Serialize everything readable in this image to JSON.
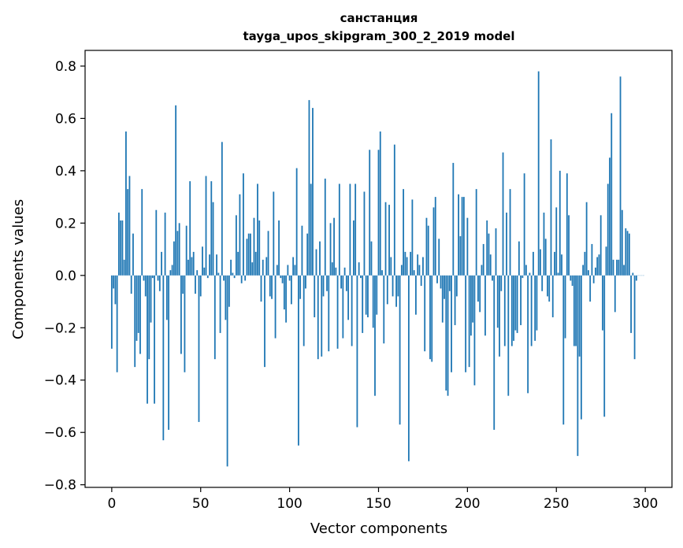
{
  "chart_data": {
    "type": "bar",
    "title": "санстанция",
    "subtitle": "tayga_upos_skipgram_300_2_2019 model",
    "xlabel": "Vector components",
    "ylabel": "Components values",
    "xlim": [
      -15,
      315
    ],
    "ylim": [
      -0.81,
      0.86
    ],
    "xticks": [
      0,
      50,
      100,
      150,
      200,
      250,
      300
    ],
    "yticks": [
      -0.8,
      -0.6,
      -0.4,
      -0.2,
      0.0,
      0.2,
      0.4,
      0.6,
      0.8
    ],
    "ytick_labels": [
      "−0.8",
      "−0.6",
      "−0.4",
      "−0.2",
      "0.0",
      "0.2",
      "0.4",
      "0.6",
      "0.8"
    ],
    "bar_color": "#1f77b4",
    "grid": false,
    "x": "0..299 (component index)",
    "values": [
      -0.28,
      -0.05,
      -0.11,
      -0.37,
      0.24,
      0.21,
      0.21,
      0.06,
      0.55,
      0.33,
      0.38,
      -0.07,
      0.16,
      -0.35,
      -0.25,
      -0.22,
      -0.3,
      0.33,
      -0.02,
      -0.08,
      -0.49,
      -0.32,
      -0.18,
      -0.01,
      -0.49,
      0.25,
      -0.02,
      -0.06,
      0.09,
      -0.63,
      0.24,
      -0.17,
      -0.59,
      0.02,
      0.04,
      0.13,
      0.65,
      0.17,
      0.2,
      -0.3,
      -0.07,
      -0.37,
      0.19,
      0.06,
      0.36,
      0.07,
      0.09,
      -0.07,
      0.02,
      -0.56,
      -0.08,
      0.11,
      0.03,
      0.38,
      -0.01,
      0.08,
      0.36,
      0.28,
      -0.32,
      0.08,
      0.01,
      -0.22,
      0.51,
      -0.02,
      -0.17,
      -0.73,
      -0.12,
      0.06,
      0.01,
      -0.01,
      0.23,
      0.09,
      0.31,
      -0.03,
      0.39,
      -0.02,
      0.14,
      0.16,
      0.16,
      0.05,
      0.22,
      0.09,
      0.35,
      0.21,
      -0.1,
      0.06,
      -0.35,
      0.07,
      0.17,
      -0.08,
      -0.09,
      0.32,
      -0.24,
      0.04,
      0.21,
      -0.01,
      -0.03,
      -0.13,
      -0.18,
      0.04,
      -0.02,
      -0.11,
      0.07,
      0.04,
      0.41,
      -0.65,
      -0.09,
      0.19,
      -0.27,
      -0.05,
      0.16,
      0.67,
      0.35,
      0.64,
      -0.16,
      0.1,
      -0.32,
      0.13,
      -0.31,
      -0.08,
      0.37,
      -0.06,
      -0.29,
      0.2,
      0.05,
      0.22,
      0.03,
      -0.28,
      0.35,
      -0.05,
      -0.24,
      0.03,
      -0.06,
      -0.17,
      0.35,
      -0.27,
      0.21,
      0.35,
      -0.58,
      0.05,
      -0.01,
      -0.22,
      0.32,
      -0.15,
      -0.16,
      0.48,
      0.13,
      -0.2,
      -0.46,
      -0.15,
      0.48,
      0.55,
      0.02,
      -0.26,
      0.28,
      -0.11,
      0.27,
      0.07,
      -0.08,
      0.5,
      -0.12,
      -0.08,
      -0.57,
      0.04,
      0.33,
      0.09,
      0.07,
      -0.71,
      0.09,
      0.29,
      0.02,
      -0.15,
      0.08,
      0.04,
      -0.04,
      0.07,
      -0.29,
      0.22,
      0.19,
      -0.32,
      -0.33,
      0.26,
      0.3,
      -0.03,
      0.14,
      -0.05,
      -0.18,
      -0.09,
      -0.44,
      -0.46,
      -0.06,
      -0.37,
      0.43,
      -0.19,
      -0.08,
      0.31,
      0.15,
      0.3,
      0.3,
      -0.37,
      0.22,
      -0.35,
      -0.23,
      -0.18,
      -0.42,
      0.33,
      -0.1,
      -0.14,
      0.04,
      0.12,
      -0.23,
      0.21,
      0.16,
      0.08,
      -0.02,
      -0.59,
      0.18,
      -0.2,
      -0.31,
      -0.06,
      0.47,
      -0.27,
      0.24,
      -0.46,
      0.33,
      -0.27,
      -0.25,
      -0.21,
      -0.22,
      0.13,
      -0.19,
      -0.01,
      0.39,
      0.04,
      -0.45,
      0.01,
      -0.27,
      0.09,
      -0.25,
      -0.21,
      0.78,
      0.1,
      -0.06,
      0.24,
      0.14,
      -0.08,
      -0.1,
      0.52,
      -0.16,
      0.09,
      0.26,
      0.01,
      0.4,
      0.08,
      -0.57,
      -0.24,
      0.39,
      0.23,
      -0.02,
      -0.04,
      -0.27,
      -0.27,
      -0.69,
      -0.31,
      -0.55,
      0.04,
      0.09,
      0.28,
      0.02,
      -0.1,
      0.12,
      -0.03,
      0.03,
      0.07,
      0.08,
      0.23,
      -0.21,
      -0.54,
      0.11,
      0.35,
      0.45,
      0.62,
      0.06,
      -0.14,
      0.06,
      0.06,
      0.76,
      0.25,
      0.04,
      0.18,
      0.17,
      0.16,
      -0.22,
      0.01,
      -0.32,
      -0.02,
      0.0,
      0.0,
      0.0,
      0.0
    ]
  }
}
